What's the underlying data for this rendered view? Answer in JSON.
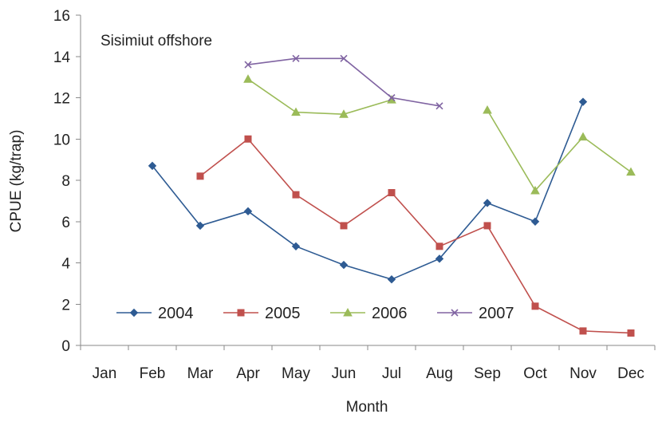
{
  "chart_data": {
    "type": "line",
    "title": "",
    "annotation": "Sisimiut offshore",
    "xlabel": "Month",
    "ylabel": "CPUE (kg/trap)",
    "categories": [
      "Jan",
      "Feb",
      "Mar",
      "Apr",
      "May",
      "Jun",
      "Jul",
      "Aug",
      "Sep",
      "Oct",
      "Nov",
      "Dec"
    ],
    "ylim": [
      0,
      16
    ],
    "yticks": [
      0,
      2,
      4,
      6,
      8,
      10,
      12,
      14,
      16
    ],
    "grid": false,
    "legend_position": "bottom-left",
    "series": [
      {
        "name": "2004",
        "color": "#2e5b93",
        "marker": "diamond",
        "values": [
          null,
          8.7,
          5.8,
          6.5,
          4.8,
          3.9,
          3.2,
          4.2,
          6.9,
          6.0,
          11.8,
          null
        ]
      },
      {
        "name": "2005",
        "color": "#c0504d",
        "marker": "square",
        "values": [
          null,
          null,
          8.2,
          10.0,
          7.3,
          5.8,
          7.4,
          4.8,
          5.8,
          1.9,
          0.7,
          0.6
        ]
      },
      {
        "name": "2006",
        "color": "#9bbb59",
        "marker": "triangle",
        "values": [
          null,
          null,
          null,
          12.9,
          11.3,
          11.2,
          11.9,
          null,
          11.4,
          7.5,
          10.1,
          8.4
        ]
      },
      {
        "name": "2007",
        "color": "#8064a2",
        "marker": "x",
        "values": [
          null,
          null,
          null,
          13.6,
          13.9,
          13.9,
          12.0,
          11.6,
          null,
          null,
          null,
          null
        ]
      }
    ]
  }
}
